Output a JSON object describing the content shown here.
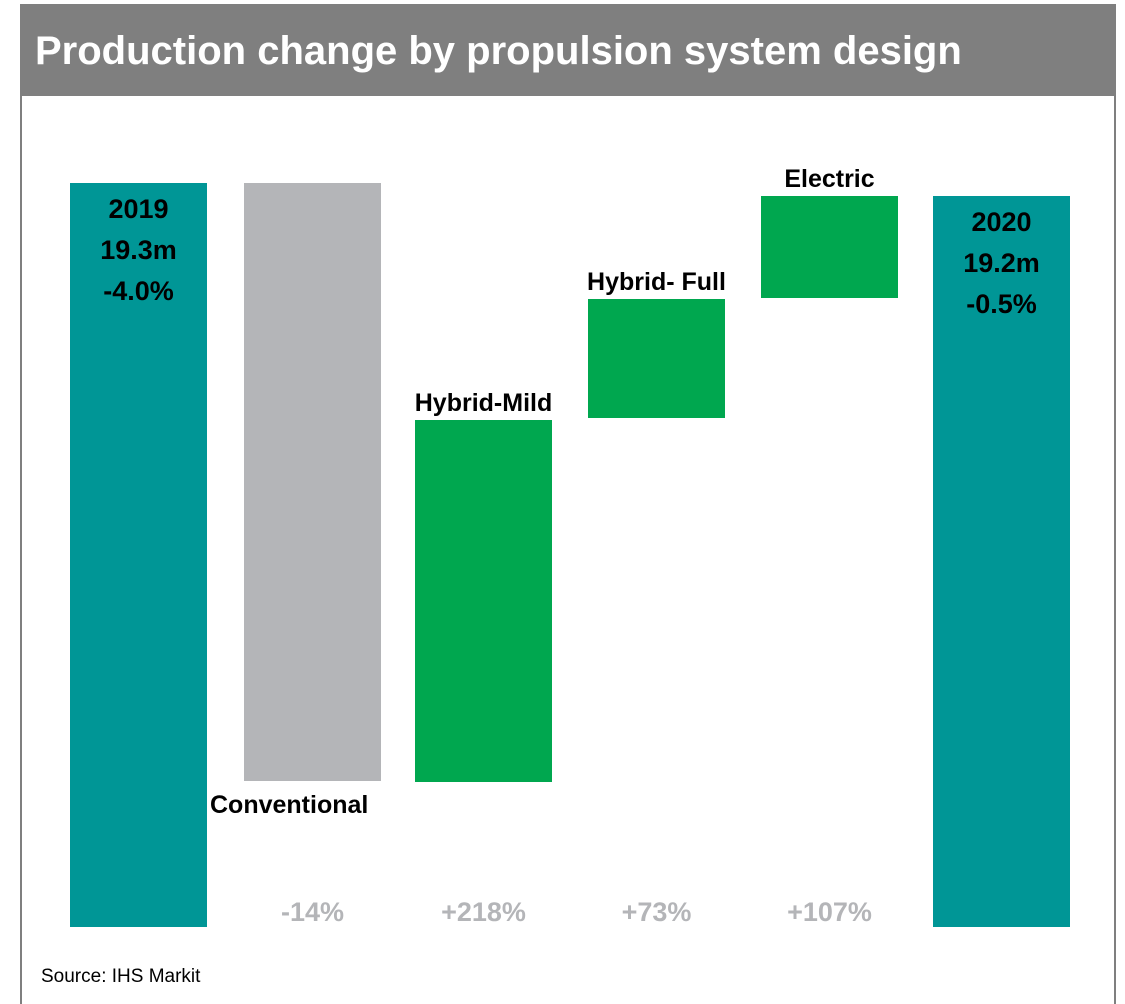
{
  "chart_data": {
    "type": "waterfall",
    "title": "Production change by propulsion system design",
    "source": "Source: IHS Markit",
    "colors": {
      "total": "#009696",
      "decrease": "#b4b5b8",
      "increase": "#00a74f",
      "pct_label": "#b4b5b8"
    },
    "bars": [
      {
        "kind": "total",
        "label_lines": [
          "2019",
          "19.3m",
          "-4.0%"
        ],
        "value": 19.3
      },
      {
        "kind": "decrease",
        "category": "Conventional",
        "pct": "-14%"
      },
      {
        "kind": "increase",
        "category": "Hybrid-Mild",
        "pct": "+218%"
      },
      {
        "kind": "increase",
        "category": "Hybrid- Full",
        "pct": "+73%"
      },
      {
        "kind": "increase",
        "category": "Electric",
        "pct": "+107%"
      },
      {
        "kind": "total",
        "label_lines": [
          "2020",
          "19.2m",
          "-0.5%"
        ],
        "value": 19.2
      }
    ]
  }
}
